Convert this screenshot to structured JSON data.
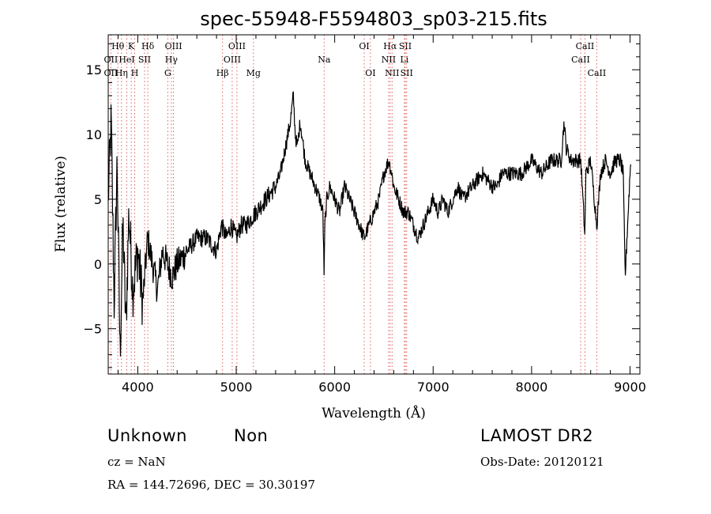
{
  "chart_data": {
    "type": "line",
    "title": "spec-55948-F5594803_sp03-215.fits",
    "xlabel": "Wavelength (Å)",
    "ylabel": "Flux (relative)",
    "xlim": [
      3700,
      9100
    ],
    "ylim": [
      -8.5,
      17.7
    ],
    "x_ticks": [
      4000,
      5000,
      6000,
      7000,
      8000,
      9000
    ],
    "x_tick_labels": [
      "4000",
      "5000",
      "6000",
      "7000",
      "8000",
      "9000"
    ],
    "y_ticks": [
      -5,
      0,
      5,
      10,
      15
    ],
    "y_tick_labels": [
      "−5",
      "0",
      "5",
      "10",
      "15"
    ],
    "grid": false,
    "series": [
      {
        "x": [
          3700,
          3730,
          3760,
          3790,
          3820,
          3850,
          3880,
          3910,
          3950,
          4000,
          4050,
          4100,
          4150,
          4200,
          4250,
          4300,
          4350,
          4400,
          4500,
          4600,
          4700,
          4800,
          4850,
          4900,
          4950,
          5000,
          5050,
          5100,
          5200,
          5300,
          5400,
          5450,
          5500,
          5550,
          5580,
          5600,
          5620,
          5650,
          5700,
          5750,
          5800,
          5850,
          5880,
          5893,
          5900,
          5920,
          5950,
          6000,
          6050,
          6100,
          6150,
          6200,
          6250,
          6300,
          6350,
          6400,
          6450,
          6500,
          6550,
          6580,
          6600,
          6650,
          6700,
          6750,
          6800,
          6850,
          6900,
          6950,
          7000,
          7050,
          7100,
          7150,
          7200,
          7250,
          7300,
          7400,
          7500,
          7600,
          7650,
          7700,
          7800,
          7900,
          8000,
          8100,
          8200,
          8300,
          8330,
          8350,
          8400,
          8450,
          8500,
          8542,
          8550,
          8600,
          8662,
          8700,
          8750,
          8800,
          8850,
          8900,
          8930,
          8950,
          9000,
          9010
        ],
        "y": [
          5,
          11,
          -3,
          8,
          -7,
          3,
          -5,
          4,
          -2,
          1,
          -3,
          2,
          0,
          -2,
          1,
          0,
          -1,
          0,
          1,
          2,
          2,
          1,
          3,
          2,
          3,
          2,
          3,
          3,
          4,
          5,
          6,
          7,
          9,
          11,
          13,
          10,
          9,
          11,
          8,
          7,
          6,
          5,
          4,
          -1,
          3,
          5,
          6,
          5,
          4,
          6,
          5,
          4,
          3,
          2,
          3,
          4,
          5,
          7,
          8,
          7,
          6,
          5,
          4,
          4,
          3,
          2,
          3,
          4,
          5,
          4,
          5,
          4,
          5,
          6,
          5,
          6,
          7,
          6,
          6,
          7,
          7,
          7,
          8,
          7,
          8,
          8,
          11,
          9,
          8,
          8,
          8,
          2,
          7,
          8,
          3,
          7,
          8,
          7,
          8,
          8,
          7,
          -1,
          7,
          8
        ]
      }
    ],
    "line_markers": [
      {
        "label": "Hθ",
        "x": 3798,
        "row": 0
      },
      {
        "label": "OII",
        "x": 3727,
        "row": 1
      },
      {
        "label": "OII",
        "x": 3727,
        "row": 2
      },
      {
        "label": "K",
        "x": 3934,
        "row": 0
      },
      {
        "label": "HeI",
        "x": 3889,
        "row": 1
      },
      {
        "label": "Hη",
        "x": 3835,
        "row": 2
      },
      {
        "label": "SII",
        "x": 4069,
        "row": 1
      },
      {
        "label": "H",
        "x": 3969,
        "row": 2
      },
      {
        "label": "Hδ",
        "x": 4102,
        "row": 0
      },
      {
        "label": "OIII",
        "x": 4363,
        "row": 0
      },
      {
        "label": "Hγ",
        "x": 4341,
        "row": 1
      },
      {
        "label": "G",
        "x": 4305,
        "row": 2
      },
      {
        "label": "Hβ",
        "x": 4861,
        "row": 2
      },
      {
        "label": "OIII",
        "x": 5007,
        "row": 0
      },
      {
        "label": "OIII",
        "x": 4959,
        "row": 1
      },
      {
        "label": "Mg",
        "x": 5175,
        "row": 2
      },
      {
        "label": "Na",
        "x": 5893,
        "row": 1
      },
      {
        "label": "OI",
        "x": 6300,
        "row": 0
      },
      {
        "label": "OI",
        "x": 6363,
        "row": 2
      },
      {
        "label": "Hα",
        "x": 6563,
        "row": 0
      },
      {
        "label": "SII",
        "x": 6717,
        "row": 0
      },
      {
        "label": "NII",
        "x": 6548,
        "row": 1
      },
      {
        "label": "Li",
        "x": 6708,
        "row": 1
      },
      {
        "label": "NII",
        "x": 6583,
        "row": 2
      },
      {
        "label": "SII",
        "x": 6731,
        "row": 2
      },
      {
        "label": "CaII",
        "x": 8542,
        "row": 0
      },
      {
        "label": "CaII",
        "x": 8498,
        "row": 1
      },
      {
        "label": "CaII",
        "x": 8662,
        "row": 2
      }
    ]
  },
  "info": {
    "class": "Unknown",
    "subclass": "Non",
    "cz": "cz = NaN",
    "radec": "RA = 144.72696, DEC =  30.30197",
    "survey": "LAMOST DR2",
    "obsdate": "Obs-Date: 20120121"
  }
}
